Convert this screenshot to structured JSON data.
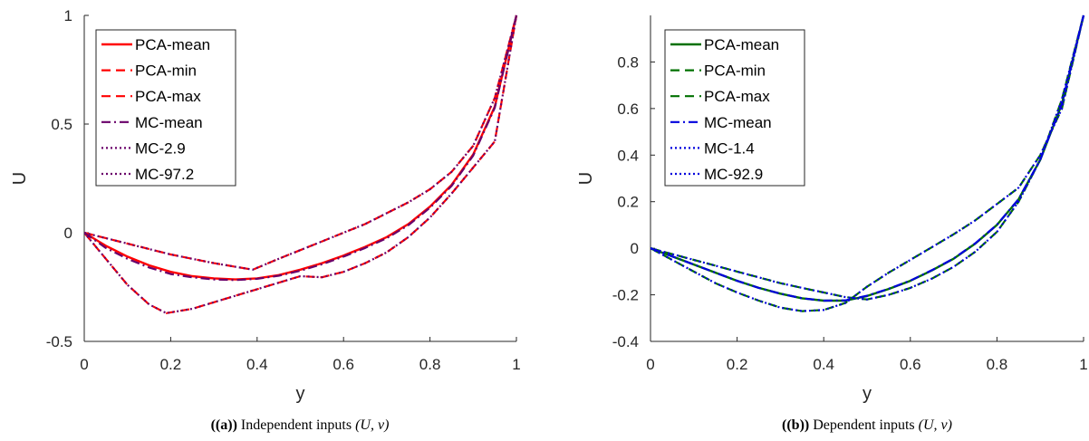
{
  "chart_data": [
    {
      "type": "line",
      "xlabel": "y",
      "ylabel": "U",
      "xlim": [
        0,
        1
      ],
      "ylim": [
        -0.5,
        1
      ],
      "xticks": [
        "0",
        "0.2",
        "0.4",
        "0.6",
        "0.8",
        "1"
      ],
      "yticks": [
        "-0.5",
        "0",
        "0.5",
        "1"
      ],
      "ytick_values": [
        -0.5,
        0,
        0.5,
        1
      ],
      "legend_position": "top-left",
      "caption": {
        "label": "((a))",
        "text": "Independent inputs",
        "math": "(U, ν)"
      },
      "series": [
        {
          "name": "PCA-mean",
          "color": "#ff0000",
          "style": "solid",
          "width": 2.4,
          "x": [
            0,
            0.05,
            0.1,
            0.15,
            0.2,
            0.25,
            0.3,
            0.35,
            0.4,
            0.45,
            0.5,
            0.55,
            0.6,
            0.65,
            0.7,
            0.75,
            0.8,
            0.85,
            0.9,
            0.95,
            1.0
          ],
          "y": [
            0,
            -0.06,
            -0.11,
            -0.15,
            -0.18,
            -0.2,
            -0.21,
            -0.215,
            -0.21,
            -0.195,
            -0.17,
            -0.14,
            -0.105,
            -0.065,
            -0.02,
            0.04,
            0.12,
            0.22,
            0.36,
            0.58,
            1.0
          ]
        },
        {
          "name": "PCA-min",
          "color": "#ff0000",
          "style": "dashed",
          "width": 2.2,
          "x": [
            0,
            0.05,
            0.1,
            0.15,
            0.19,
            0.25,
            0.3,
            0.35,
            0.4,
            0.45,
            0.5,
            0.55,
            0.6,
            0.65,
            0.7,
            0.75,
            0.8,
            0.85,
            0.9,
            0.95,
            1.0
          ],
          "y": [
            0,
            -0.12,
            -0.24,
            -0.33,
            -0.37,
            -0.35,
            -0.32,
            -0.29,
            -0.26,
            -0.23,
            -0.2,
            -0.205,
            -0.18,
            -0.14,
            -0.09,
            -0.02,
            0.07,
            0.18,
            0.3,
            0.42,
            1.0
          ]
        },
        {
          "name": "PCA-max",
          "color": "#ff0000",
          "style": "dashed",
          "width": 2.2,
          "x": [
            0,
            0.1,
            0.2,
            0.3,
            0.39,
            0.45,
            0.5,
            0.55,
            0.6,
            0.65,
            0.7,
            0.75,
            0.8,
            0.85,
            0.9,
            0.95,
            1.0
          ],
          "y": [
            0,
            -0.05,
            -0.1,
            -0.14,
            -0.17,
            -0.12,
            -0.08,
            -0.04,
            0.0,
            0.04,
            0.09,
            0.14,
            0.2,
            0.28,
            0.4,
            0.62,
            1.0
          ]
        },
        {
          "name": "MC-mean",
          "color": "#6a006a",
          "style": "dashdot",
          "width": 2.2,
          "x": [
            0,
            0.05,
            0.1,
            0.15,
            0.2,
            0.25,
            0.3,
            0.35,
            0.4,
            0.45,
            0.5,
            0.55,
            0.6,
            0.65,
            0.7,
            0.75,
            0.8,
            0.85,
            0.9,
            0.95,
            1.0
          ],
          "y": [
            0,
            -0.07,
            -0.12,
            -0.16,
            -0.19,
            -0.205,
            -0.215,
            -0.218,
            -0.212,
            -0.198,
            -0.175,
            -0.145,
            -0.11,
            -0.07,
            -0.025,
            0.035,
            0.115,
            0.215,
            0.355,
            0.575,
            1.0
          ]
        },
        {
          "name": "MC-2.9",
          "color": "#6a006a",
          "style": "dotted",
          "width": 2.2,
          "x": [
            0,
            0.05,
            0.1,
            0.15,
            0.19,
            0.25,
            0.3,
            0.35,
            0.4,
            0.45,
            0.5,
            0.55,
            0.6,
            0.65,
            0.7,
            0.75,
            0.8,
            0.85,
            0.9,
            0.95,
            1.0
          ],
          "y": [
            0,
            -0.12,
            -0.24,
            -0.33,
            -0.37,
            -0.35,
            -0.32,
            -0.29,
            -0.26,
            -0.23,
            -0.2,
            -0.205,
            -0.18,
            -0.14,
            -0.09,
            -0.02,
            0.07,
            0.18,
            0.3,
            0.42,
            1.0
          ]
        },
        {
          "name": "MC-97.2",
          "color": "#6a006a",
          "style": "dotted",
          "width": 2.2,
          "x": [
            0,
            0.1,
            0.2,
            0.3,
            0.39,
            0.45,
            0.5,
            0.55,
            0.6,
            0.65,
            0.7,
            0.75,
            0.8,
            0.85,
            0.9,
            0.95,
            1.0
          ],
          "y": [
            0,
            -0.05,
            -0.1,
            -0.14,
            -0.17,
            -0.12,
            -0.08,
            -0.04,
            0.0,
            0.04,
            0.09,
            0.14,
            0.2,
            0.28,
            0.4,
            0.62,
            1.0
          ]
        }
      ]
    },
    {
      "type": "line",
      "xlabel": "y",
      "ylabel": "U",
      "xlim": [
        0,
        1
      ],
      "ylim": [
        -0.4,
        1
      ],
      "xticks": [
        "0",
        "0.2",
        "0.4",
        "0.6",
        "0.8",
        "1"
      ],
      "yticks": [
        "-0.4",
        "-0.2",
        "0",
        "0.2",
        "0.4",
        "0.6",
        "0.8"
      ],
      "ytick_values": [
        -0.4,
        -0.2,
        0,
        0.2,
        0.4,
        0.6,
        0.8
      ],
      "legend_position": "top-left",
      "caption": {
        "label": "((b))",
        "text": "Dependent inputs",
        "math": "(U, ν)"
      },
      "series": [
        {
          "name": "PCA-mean",
          "color": "#007000",
          "style": "solid",
          "width": 2.4,
          "x": [
            0,
            0.05,
            0.1,
            0.15,
            0.2,
            0.25,
            0.3,
            0.35,
            0.4,
            0.45,
            0.5,
            0.55,
            0.6,
            0.65,
            0.7,
            0.75,
            0.8,
            0.85,
            0.9,
            0.95,
            1.0
          ],
          "y": [
            0,
            -0.035,
            -0.07,
            -0.105,
            -0.14,
            -0.17,
            -0.195,
            -0.215,
            -0.225,
            -0.225,
            -0.205,
            -0.175,
            -0.14,
            -0.095,
            -0.045,
            0.02,
            0.1,
            0.21,
            0.38,
            0.62,
            1.0
          ]
        },
        {
          "name": "PCA-min",
          "color": "#007000",
          "style": "dashed",
          "width": 2.2,
          "x": [
            0,
            0.05,
            0.1,
            0.15,
            0.2,
            0.25,
            0.3,
            0.35,
            0.4,
            0.45,
            0.5,
            0.55,
            0.6,
            0.65,
            0.7,
            0.75,
            0.8,
            0.85,
            0.9,
            0.95,
            1.0
          ],
          "y": [
            0,
            -0.05,
            -0.1,
            -0.15,
            -0.19,
            -0.225,
            -0.255,
            -0.27,
            -0.265,
            -0.235,
            -0.165,
            -0.105,
            -0.05,
            0.005,
            0.06,
            0.12,
            0.19,
            0.26,
            0.4,
            0.6,
            1.0
          ]
        },
        {
          "name": "PCA-max",
          "color": "#007000",
          "style": "dashed",
          "width": 2.2,
          "x": [
            0,
            0.05,
            0.1,
            0.15,
            0.2,
            0.25,
            0.3,
            0.35,
            0.4,
            0.45,
            0.5,
            0.55,
            0.6,
            0.65,
            0.7,
            0.75,
            0.8,
            0.85,
            0.9,
            0.95,
            1.0
          ],
          "y": [
            0,
            -0.025,
            -0.05,
            -0.075,
            -0.1,
            -0.125,
            -0.15,
            -0.17,
            -0.19,
            -0.21,
            -0.22,
            -0.2,
            -0.17,
            -0.13,
            -0.08,
            -0.015,
            0.07,
            0.2,
            0.38,
            0.64,
            1.0
          ]
        },
        {
          "name": "MC-mean",
          "color": "#0000dd",
          "style": "dashdot",
          "width": 2.2,
          "x": [
            0,
            0.05,
            0.1,
            0.15,
            0.2,
            0.25,
            0.3,
            0.35,
            0.4,
            0.45,
            0.5,
            0.55,
            0.6,
            0.65,
            0.7,
            0.75,
            0.8,
            0.85,
            0.9,
            0.95,
            1.0
          ],
          "y": [
            0,
            -0.035,
            -0.07,
            -0.105,
            -0.14,
            -0.17,
            -0.195,
            -0.215,
            -0.225,
            -0.224,
            -0.204,
            -0.174,
            -0.139,
            -0.094,
            -0.044,
            0.021,
            0.101,
            0.211,
            0.381,
            0.621,
            1.0
          ]
        },
        {
          "name": "MC-1.4",
          "color": "#0000dd",
          "style": "dotted",
          "width": 2.2,
          "x": [
            0,
            0.05,
            0.1,
            0.15,
            0.2,
            0.25,
            0.3,
            0.35,
            0.4,
            0.45,
            0.5,
            0.55,
            0.6,
            0.65,
            0.7,
            0.75,
            0.8,
            0.85,
            0.9,
            0.95,
            1.0
          ],
          "y": [
            0,
            -0.05,
            -0.1,
            -0.15,
            -0.19,
            -0.225,
            -0.255,
            -0.27,
            -0.265,
            -0.235,
            -0.165,
            -0.105,
            -0.05,
            0.005,
            0.06,
            0.12,
            0.19,
            0.26,
            0.4,
            0.6,
            1.0
          ]
        },
        {
          "name": "MC-92.9",
          "color": "#0000dd",
          "style": "dotted",
          "width": 2.2,
          "x": [
            0,
            0.05,
            0.1,
            0.15,
            0.2,
            0.25,
            0.3,
            0.35,
            0.4,
            0.45,
            0.5,
            0.55,
            0.6,
            0.65,
            0.7,
            0.75,
            0.8,
            0.85,
            0.9,
            0.95,
            1.0
          ],
          "y": [
            0,
            -0.025,
            -0.05,
            -0.075,
            -0.1,
            -0.125,
            -0.15,
            -0.17,
            -0.19,
            -0.21,
            -0.22,
            -0.2,
            -0.17,
            -0.13,
            -0.08,
            -0.015,
            0.07,
            0.2,
            0.38,
            0.64,
            1.0
          ]
        }
      ]
    }
  ]
}
